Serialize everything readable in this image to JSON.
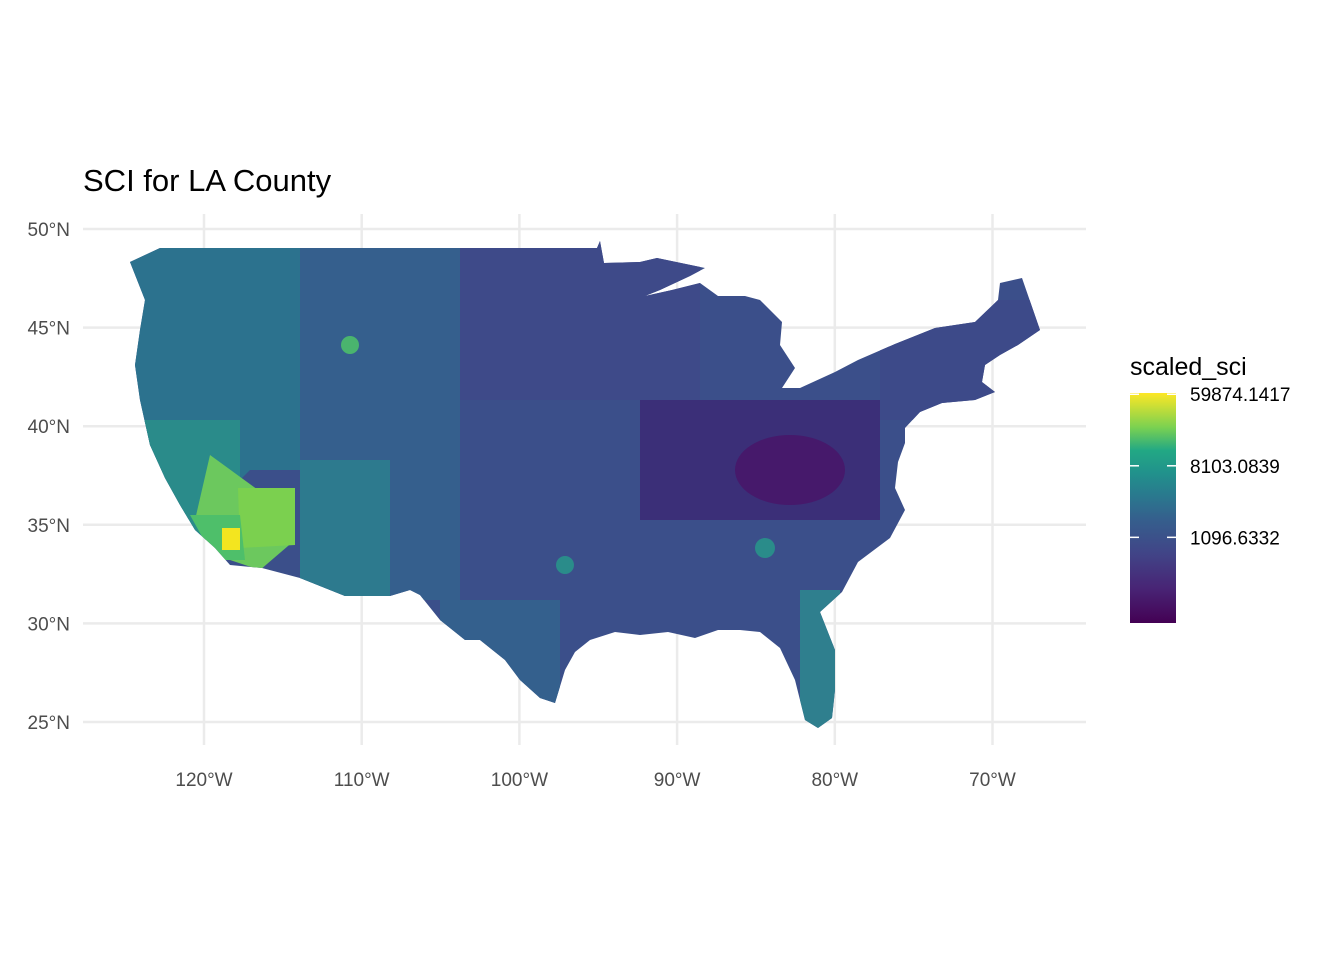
{
  "title": "SCI for LA County",
  "map": {
    "lat_ticks": [
      {
        "value": 50,
        "label": "50°N"
      },
      {
        "value": 45,
        "label": "45°N"
      },
      {
        "value": 40,
        "label": "40°N"
      },
      {
        "value": 35,
        "label": "35°N"
      },
      {
        "value": 30,
        "label": "30°N"
      },
      {
        "value": 25,
        "label": "25°N"
      }
    ],
    "lon_ticks": [
      {
        "value": -120,
        "label": "120°W"
      },
      {
        "value": -110,
        "label": "110°W"
      },
      {
        "value": -100,
        "label": "100°W"
      },
      {
        "value": -90,
        "label": "90°W"
      },
      {
        "value": -80,
        "label": "80°W"
      },
      {
        "value": -70,
        "label": "70°W"
      }
    ],
    "grid": true,
    "palette": "viridis",
    "colors": {
      "lowest": "#440154",
      "low": "#3b528b",
      "mid": "#21918c",
      "high": "#5ec962",
      "highest": "#fde725",
      "grid": "#ebebeb"
    }
  },
  "legend": {
    "title": "scaled_sci",
    "position": "right",
    "labels": [
      "59874.1417",
      "8103.0839",
      "1096.6332"
    ]
  }
}
